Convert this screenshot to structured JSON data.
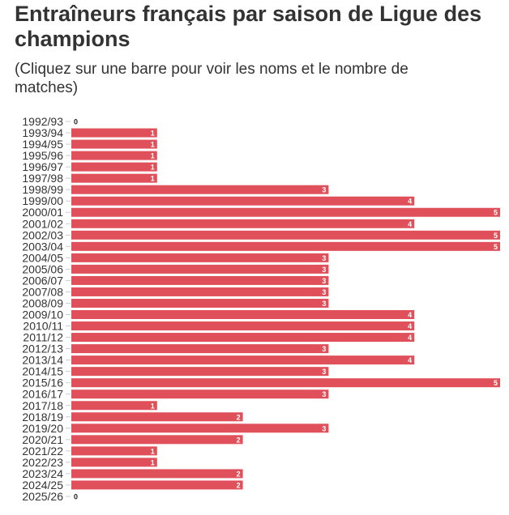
{
  "chart_data": {
    "type": "bar",
    "orientation": "horizontal",
    "title": "Entraîneurs français par saison de Ligue des champions",
    "subtitle": "(Cliquez sur une barre pour voir les noms et le nombre de matches)",
    "categories": [
      "1992/93",
      "1993/94",
      "1994/95",
      "1995/96",
      "1996/97",
      "1997/98",
      "1998/99",
      "1999/00",
      "2000/01",
      "2001/02",
      "2002/03",
      "2003/04",
      "2004/05",
      "2005/06",
      "2006/07",
      "2007/08",
      "2008/09",
      "2009/10",
      "2010/11",
      "2011/12",
      "2012/13",
      "2013/14",
      "2014/15",
      "2015/16",
      "2016/17",
      "2017/18",
      "2018/19",
      "2019/20",
      "2020/21",
      "2021/22",
      "2022/23",
      "2023/24",
      "2024/25",
      "2025/26"
    ],
    "values": [
      0,
      1,
      1,
      1,
      1,
      1,
      3,
      4,
      5,
      4,
      5,
      5,
      3,
      3,
      3,
      3,
      3,
      4,
      4,
      4,
      3,
      4,
      3,
      5,
      3,
      1,
      2,
      3,
      2,
      1,
      1,
      2,
      2,
      0
    ],
    "xlim": [
      0,
      5
    ],
    "grid": false,
    "data_labels": true,
    "bar_color": "#e0505a"
  }
}
